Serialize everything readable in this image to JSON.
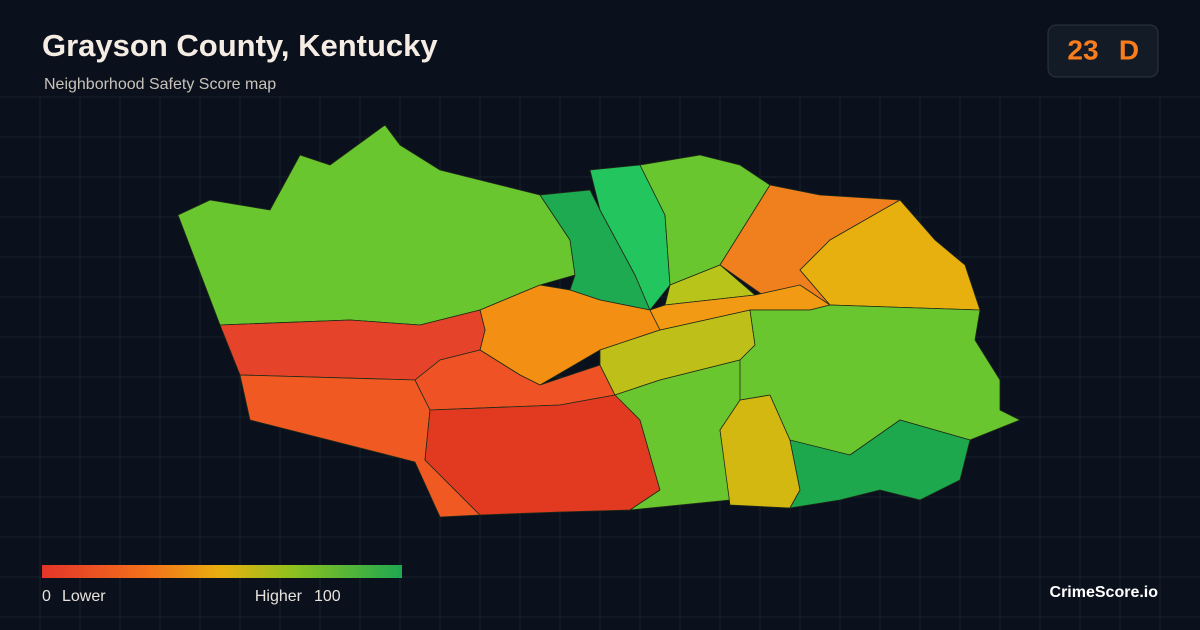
{
  "title": "Grayson County, Kentucky",
  "subtitle": "Neighborhood Safety Score map",
  "score": {
    "value": 23,
    "grade": "D"
  },
  "legend": {
    "min": 0,
    "low_label": "Lower",
    "high_label": "Higher",
    "max": 100
  },
  "brand": "CrimeScore.io"
}
